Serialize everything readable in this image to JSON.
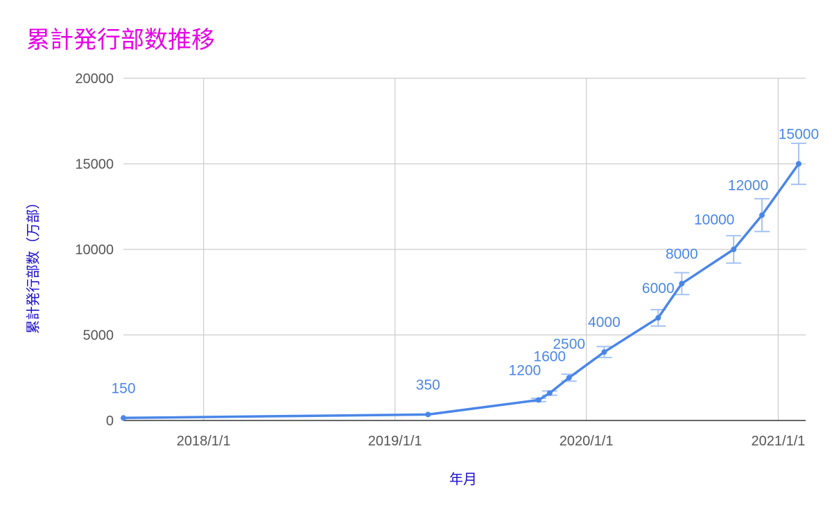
{
  "chart_data": {
    "type": "line",
    "title": "累計発行部数推移",
    "xlabel": "年月",
    "ylabel": "累計発行部数（万部）",
    "ylim": [
      0,
      20000
    ],
    "yticks": [
      "0",
      "5000",
      "10000",
      "15000",
      "20000"
    ],
    "xticks": [
      "2018/1/1",
      "2019/1/1",
      "2020/1/1",
      "2021/1/1"
    ],
    "xlim": [
      "2017-08-01",
      "2021-02-15"
    ],
    "grid": true,
    "error_bars": true,
    "colors": {
      "series": "#4a86e8",
      "title": "#e600e6",
      "axis_title": "#1a0dcc"
    },
    "series": [
      {
        "points": [
          {
            "x": "2017-08-01",
            "y": 150,
            "label": "150"
          },
          {
            "x": "2019-03-05",
            "y": 350,
            "label": "350"
          },
          {
            "x": "2019-10-02",
            "y": 1200,
            "label": "1200"
          },
          {
            "x": "2019-10-23",
            "y": 1600,
            "label": "1600"
          },
          {
            "x": "2019-11-29",
            "y": 2500,
            "label": "2500"
          },
          {
            "x": "2020-02-04",
            "y": 4000,
            "label": "4000"
          },
          {
            "x": "2020-05-17",
            "y": 6000,
            "label": "6000"
          },
          {
            "x": "2020-07-01",
            "y": 8000,
            "label": "8000"
          },
          {
            "x": "2020-10-08",
            "y": 10000,
            "label": "10000"
          },
          {
            "x": "2020-12-01",
            "y": 12000,
            "label": "12000"
          },
          {
            "x": "2021-02-09",
            "y": 15000,
            "label": "15000"
          }
        ]
      }
    ]
  }
}
